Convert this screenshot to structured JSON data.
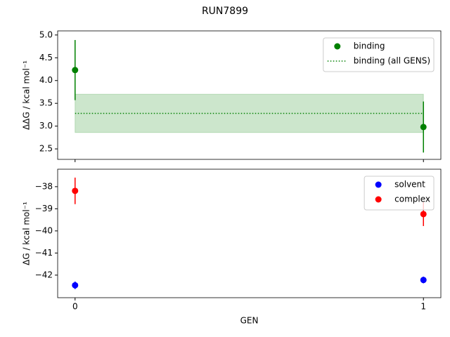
{
  "title": "RUN7899",
  "chart_data": [
    {
      "type": "errorbar",
      "ylabel": "ΔΔG / kcal mol⁻¹",
      "x": [
        0,
        1
      ],
      "xlim": [
        -0.05,
        1.05
      ],
      "xticks": [
        0,
        1
      ],
      "show_xtick_labels": false,
      "ylim": [
        2.27,
        5.09
      ],
      "yticks": [
        {
          "value": 2.5,
          "label": "2.5"
        },
        {
          "value": 3,
          "label": "3.0"
        },
        3.5,
        {
          "value": 4,
          "label": "4.0"
        },
        4.5,
        {
          "value": 5,
          "label": "5.0"
        }
      ],
      "legend": "upper right",
      "series": [
        {
          "name": "binding",
          "color": "#008000",
          "style": "points",
          "values": [
            4.23,
            2.98
          ],
          "errors": [
            0.66,
            0.56
          ]
        },
        {
          "name": "binding (all GENS)",
          "color": "#008000",
          "style": "dotted-band",
          "values": [
            3.28,
            3.28
          ],
          "errors": [
            0.42,
            0.42
          ]
        }
      ]
    },
    {
      "type": "errorbar",
      "ylabel": "ΔG / kcal mol⁻¹",
      "xlabel": "GEN",
      "x": [
        0,
        1
      ],
      "xlim": [
        -0.05,
        1.05
      ],
      "xticks": [
        0,
        1
      ],
      "show_xtick_labels": true,
      "ylim": [
        -43.02,
        -37.21
      ],
      "yticks": [
        {
          "value": -42,
          "label": "−42"
        },
        {
          "value": -41,
          "label": "−41"
        },
        {
          "value": -40,
          "label": "−40"
        },
        {
          "value": -39,
          "label": "−39"
        },
        {
          "value": -38,
          "label": "−38"
        }
      ],
      "legend": "upper right",
      "series": [
        {
          "name": "solvent",
          "color": "#0000ff",
          "style": "points",
          "values": [
            -42.46,
            -42.22
          ],
          "errors": [
            0.17,
            0.15
          ]
        },
        {
          "name": "complex",
          "color": "#ff0000",
          "style": "points",
          "values": [
            -38.19,
            -39.24
          ],
          "errors": [
            0.6,
            0.54
          ]
        }
      ]
    }
  ]
}
